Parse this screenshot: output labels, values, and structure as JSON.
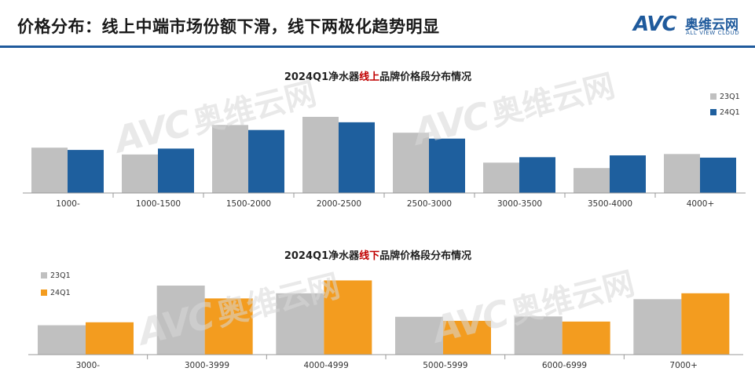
{
  "header": {
    "title": "价格分布：线上中端市场份额下滑，线下两极化趋势明显",
    "logo_mark": "AVC",
    "logo_cn": "奥维云网",
    "logo_en": "ALL VIEW CLOUD",
    "rule_color": "#1f5a9c"
  },
  "chart_data": [
    {
      "type": "bar",
      "title_prefix": "2024Q1净水器",
      "title_highlight": "线上",
      "title_suffix": "品牌价格段分布情况",
      "title_highlight_color": "#c00000",
      "categories": [
        "1000-",
        "1000-1500",
        "1500-2000",
        "2000-2500",
        "2500-3000",
        "3000-3500",
        "3500-4000",
        "4000+"
      ],
      "series": [
        {
          "name": "23Q1",
          "color": "#c0c0c0",
          "values": [
            10.0,
            8.5,
            15.0,
            16.8,
            13.3,
            6.7,
            5.5,
            8.6
          ]
        },
        {
          "name": "24Q1",
          "color": "#1e5f9e",
          "values": [
            9.5,
            9.8,
            13.9,
            15.6,
            12.0,
            7.9,
            8.3,
            7.8
          ]
        }
      ],
      "ylim": [
        0,
        18
      ],
      "legend_position": "top-right",
      "grid": false,
      "xlabel": "",
      "ylabel": ""
    },
    {
      "type": "bar",
      "title_prefix": "2024Q1净水器",
      "title_highlight": "线下",
      "title_suffix": "品牌价格段分布情况",
      "title_highlight_color": "#c00000",
      "categories": [
        "3000-",
        "3000-3999",
        "4000-4999",
        "5000-5999",
        "6000-6999",
        "7000+"
      ],
      "series": [
        {
          "name": "23Q1",
          "color": "#c0c0c0",
          "values": [
            8.0,
            18.8,
            16.7,
            10.3,
            10.4,
            15.1
          ]
        },
        {
          "name": "24Q1",
          "color": "#f39c1f",
          "values": [
            8.8,
            15.3,
            20.2,
            9.2,
            9.0,
            16.7
          ]
        }
      ],
      "ylim": [
        0,
        22
      ],
      "legend_position": "top-left",
      "grid": false,
      "xlabel": "",
      "ylabel": ""
    }
  ]
}
